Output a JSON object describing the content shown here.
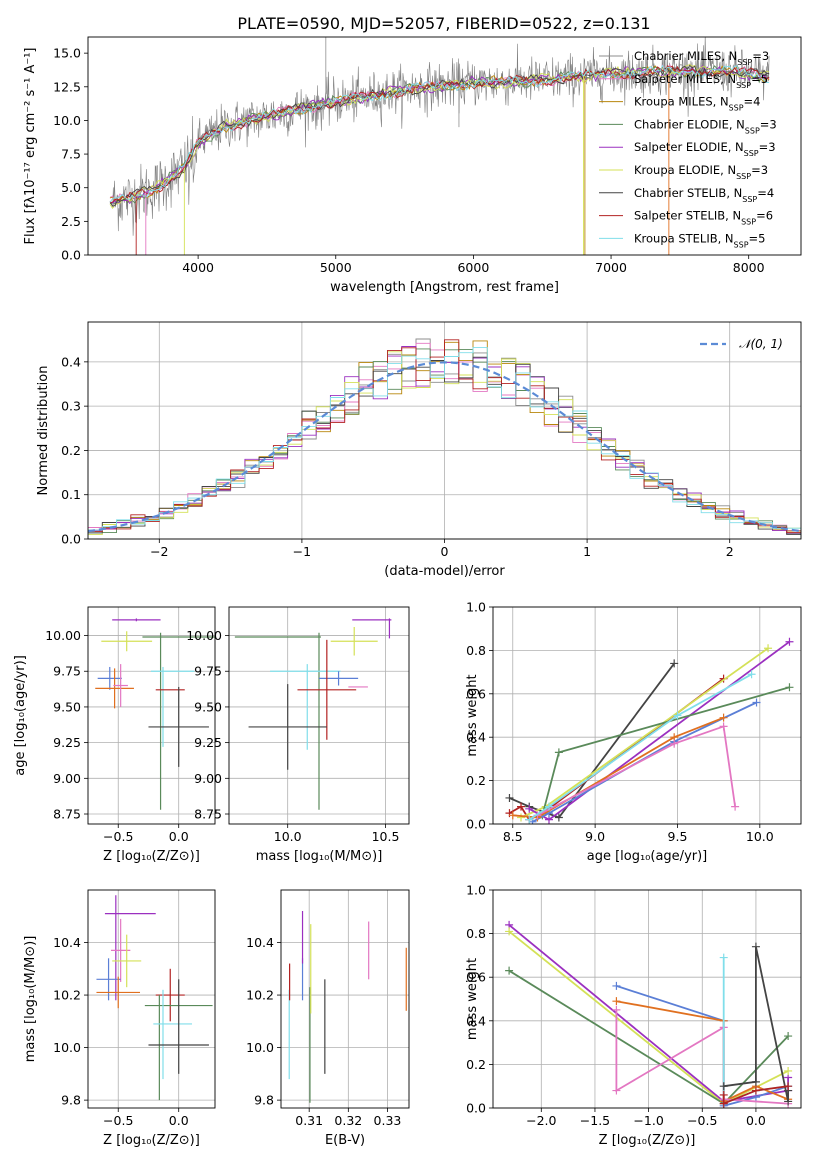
{
  "figure_title": "PLATE=0590, MJD=52057, FIBERID=0522, z=0.131",
  "colors": {
    "Chabrier MILES": "#8c8c8c",
    "Salpeter MILES": "#e377c2",
    "Kroupa MILES": "#b8860b",
    "Chabrier ELODIE": "#5a8a5a",
    "Salpeter ELODIE": "#9b30c0",
    "Kroupa ELODIE": "#d4e157",
    "Chabrier STELIB": "#444444",
    "Salpeter STELIB": "#b22222",
    "Kroupa STELIB": "#80deea",
    "extra_blue": "#5b7fd6",
    "extra_orange": "#e07020",
    "normal_fit": "#5b8bd6"
  },
  "chart_data": [
    {
      "id": "spectrum",
      "type": "line",
      "title": "PLATE=0590, MJD=52057, FIBERID=0522, z=0.131",
      "xlabel": "wavelength [Angstrom, rest frame]",
      "ylabel": "Flux [fλ10⁻¹⁷ erg cm⁻² s⁻¹ A⁻¹]",
      "xlim": [
        3200,
        8380
      ],
      "ylim": [
        0,
        16.2
      ],
      "xticks": [
        "4000",
        "5000",
        "6000",
        "7000",
        "8000"
      ],
      "yticks": [
        "0.0",
        "2.5",
        "5.0",
        "7.5",
        "10.0",
        "12.5",
        "15.0"
      ],
      "legend_position": "right",
      "legend": [
        {
          "name": "Chabrier MILES",
          "nssp": "3"
        },
        {
          "name": "Salpeter MILES",
          "nssp": "5"
        },
        {
          "name": "Kroupa MILES",
          "nssp": "4"
        },
        {
          "name": "Chabrier ELODIE",
          "nssp": "3"
        },
        {
          "name": "Salpeter ELODIE",
          "nssp": "3"
        },
        {
          "name": "Kroupa ELODIE",
          "nssp": "3"
        },
        {
          "name": "Chabrier STELIB",
          "nssp": "4"
        },
        {
          "name": "Salpeter STELIB",
          "nssp": "6"
        },
        {
          "name": "Kroupa STELIB",
          "nssp": "5"
        }
      ],
      "continuum": {
        "x": [
          3350,
          3500,
          3700,
          3900,
          4000,
          4200,
          4500,
          4800,
          5000,
          5200,
          5500,
          5800,
          6000,
          6300,
          6500,
          6800,
          7000,
          7300,
          7600,
          7900,
          8150
        ],
        "y": [
          3.9,
          4.2,
          5.0,
          6.5,
          8.3,
          9.6,
          10.3,
          11.0,
          11.4,
          11.7,
          12.3,
          12.6,
          12.8,
          12.9,
          13.0,
          13.3,
          13.5,
          13.6,
          13.7,
          13.6,
          13.2
        ]
      }
    },
    {
      "id": "residuals",
      "type": "bar",
      "xlabel": "(data-model)/error",
      "ylabel": "Normed distribution",
      "xlim": [
        -2.5,
        2.5
      ],
      "ylim": [
        0,
        0.49
      ],
      "xticks": [
        "−2",
        "−1",
        "0",
        "1",
        "2"
      ],
      "yticks": [
        "0.0",
        "0.1",
        "0.2",
        "0.3",
        "0.4"
      ],
      "legend": "𝒩(0, 1)",
      "legend_position": "top-right",
      "bins": 50
    },
    {
      "id": "age_vs_Z",
      "type": "scatter",
      "xlabel": "Z [log₁₀(Z/Z⊙)]",
      "ylabel": "age  [log₁₀(age/yr)]",
      "xlim": [
        -0.75,
        0.3
      ],
      "ylim": [
        8.68,
        10.2
      ],
      "xticks": [
        "−0.5",
        "0.0"
      ],
      "yticks": [
        "8.75",
        "9.00",
        "9.25",
        "9.50",
        "9.75",
        "10.00"
      ],
      "points": [
        {
          "model": "Salpeter ELODIE",
          "x": -0.35,
          "xerr": 0.2,
          "y": 10.11,
          "yerr": 0.01
        },
        {
          "model": "Kroupa ELODIE",
          "x": -0.43,
          "xerr": 0.21,
          "y": 9.96,
          "yerr": 0.07
        },
        {
          "model": "Chabrier ELODIE",
          "x": 0.0,
          "xerr": 0.3,
          "y": 9.99,
          "yerr": 0.0
        },
        {
          "model": "Chabrier ELODIE",
          "x": -0.15,
          "xerr": 0.0,
          "y": 9.4,
          "yerr": 0.62
        },
        {
          "model": "Kroupa STELIB",
          "x": -0.05,
          "xerr": 0.18,
          "y": 9.75,
          "yerr": 0.0
        },
        {
          "model": "Kroupa STELIB",
          "x": -0.13,
          "xerr": 0.0,
          "y": 9.5,
          "yerr": 0.28
        },
        {
          "model": "extra_blue",
          "x": -0.57,
          "xerr": 0.1,
          "y": 9.7,
          "yerr": 0.08
        },
        {
          "model": "extra_orange",
          "x": -0.53,
          "xerr": 0.16,
          "y": 9.63,
          "yerr": 0.14
        },
        {
          "model": "Salpeter MILES",
          "x": -0.48,
          "xerr": 0.06,
          "y": 9.65,
          "yerr": 0.15
        },
        {
          "model": "Salpeter STELIB",
          "x": -0.07,
          "xerr": 0.12,
          "y": 9.62,
          "yerr": 0.0
        },
        {
          "model": "Chabrier STELIB",
          "x": 0.0,
          "xerr": 0.25,
          "y": 9.36,
          "yerr": 0.28
        }
      ]
    },
    {
      "id": "age_vs_mass",
      "type": "scatter",
      "xlabel": "mass [log₁₀(M/M⊙)]",
      "ylabel": "",
      "xlim": [
        9.7,
        10.62
      ],
      "ylim": [
        8.68,
        10.2
      ],
      "xticks": [
        "10.0",
        "10.5"
      ],
      "yticks": [
        "8.75",
        "9.00",
        "9.25",
        "9.50",
        "9.75",
        "10.00"
      ],
      "points": [
        {
          "model": "Salpeter ELODIE",
          "x": 10.52,
          "xerr": 0.0,
          "y": 10.05,
          "yerr": 0.07
        },
        {
          "model": "Salpeter ELODIE",
          "x": 10.43,
          "xerr": 0.1,
          "y": 10.11,
          "yerr": 0.0
        },
        {
          "model": "Kroupa ELODIE",
          "x": 10.34,
          "xerr": 0.12,
          "y": 9.96,
          "yerr": 0.1
        },
        {
          "model": "Chabrier ELODIE",
          "x": 9.95,
          "xerr": 0.22,
          "y": 9.99,
          "yerr": 0.0
        },
        {
          "model": "Chabrier ELODIE",
          "x": 10.16,
          "xerr": 0.0,
          "y": 9.4,
          "yerr": 0.62
        },
        {
          "model": "Kroupa STELIB",
          "x": 10.09,
          "xerr": 0.18,
          "y": 9.75,
          "yerr": 0.0
        },
        {
          "model": "Kroupa STELIB",
          "x": 10.1,
          "xerr": 0.0,
          "y": 9.5,
          "yerr": 0.3
        },
        {
          "model": "extra_blue",
          "x": 10.26,
          "xerr": 0.1,
          "y": 9.7,
          "yerr": 0.05
        },
        {
          "model": "Salpeter MILES",
          "x": 10.36,
          "xerr": 0.05,
          "y": 9.64,
          "yerr": 0.0
        },
        {
          "model": "Salpeter STELIB",
          "x": 10.2,
          "xerr": 0.15,
          "y": 9.62,
          "yerr": 0.35
        },
        {
          "model": "Chabrier STELIB",
          "x": 10.0,
          "xerr": 0.2,
          "y": 9.36,
          "yerr": 0.3
        }
      ]
    },
    {
      "id": "weight_vs_age",
      "type": "line",
      "xlabel": "age  [log₁₀(age/yr)]",
      "ylabel": "mass weight",
      "xlim": [
        8.38,
        10.25
      ],
      "ylim": [
        0,
        1.0
      ],
      "xticks": [
        "8.5",
        "9.0",
        "9.5",
        "10.0"
      ],
      "yticks": [
        "0.0",
        "0.2",
        "0.4",
        "0.6",
        "0.8",
        "1.0"
      ],
      "series": [
        {
          "model": "Chabrier STELIB",
          "x": [
            8.48,
            8.6,
            8.78,
            9.48
          ],
          "y": [
            0.12,
            0.08,
            0.03,
            0.74
          ]
        },
        {
          "model": "Salpeter STELIB",
          "x": [
            8.48,
            8.55,
            8.6,
            8.7,
            9.78
          ],
          "y": [
            0.05,
            0.08,
            0.02,
            0.06,
            0.67
          ]
        },
        {
          "model": "Kroupa ELODIE",
          "x": [
            8.55,
            8.7,
            10.05
          ],
          "y": [
            0.03,
            0.08,
            0.81
          ]
        },
        {
          "model": "Salpeter ELODIE",
          "x": [
            8.6,
            8.72,
            10.18
          ],
          "y": [
            0.07,
            0.02,
            0.84
          ]
        },
        {
          "model": "Chabrier ELODIE",
          "x": [
            8.68,
            8.78,
            10.18
          ],
          "y": [
            0.04,
            0.33,
            0.63
          ]
        },
        {
          "model": "extra_blue",
          "x": [
            8.62,
            8.72,
            9.48,
            9.98
          ],
          "y": [
            0.01,
            0.05,
            0.38,
            0.56
          ]
        },
        {
          "model": "extra_orange",
          "x": [
            8.5,
            8.65,
            9.48,
            9.78
          ],
          "y": [
            0.04,
            0.03,
            0.4,
            0.49
          ]
        },
        {
          "model": "Salpeter MILES",
          "x": [
            8.65,
            9.48,
            9.78,
            9.85
          ],
          "y": [
            0.04,
            0.37,
            0.45,
            0.08
          ]
        },
        {
          "model": "Kroupa STELIB",
          "x": [
            8.6,
            8.72,
            9.5,
            9.95
          ],
          "y": [
            0.02,
            0.08,
            0.5,
            0.69
          ]
        }
      ]
    },
    {
      "id": "mass_vs_Z",
      "type": "scatter",
      "xlabel": "Z [log₁₀(Z/Z⊙)]",
      "ylabel": "mass [log₁₀(M/M⊙)]",
      "xlim": [
        -0.75,
        0.3
      ],
      "ylim": [
        9.77,
        10.6
      ],
      "xticks": [
        "−0.5",
        "0.0"
      ],
      "yticks": [
        "9.8",
        "10.0",
        "10.2",
        "10.4"
      ],
      "points": [
        {
          "model": "Salpeter ELODIE",
          "x": -0.4,
          "xerr": 0.21,
          "y": 10.51,
          "yerr": 0.0
        },
        {
          "model": "Salpeter ELODIE",
          "x": -0.52,
          "xerr": 0.0,
          "y": 10.38,
          "yerr": 0.2
        },
        {
          "model": "Salpeter MILES",
          "x": -0.48,
          "xerr": 0.08,
          "y": 10.37,
          "yerr": 0.12
        },
        {
          "model": "Kroupa ELODIE",
          "x": -0.43,
          "xerr": 0.12,
          "y": 10.33,
          "yerr": 0.1
        },
        {
          "model": "extra_blue",
          "x": -0.58,
          "xerr": 0.1,
          "y": 10.26,
          "yerr": 0.08
        },
        {
          "model": "extra_orange",
          "x": -0.5,
          "xerr": 0.18,
          "y": 10.21,
          "yerr": 0.06
        },
        {
          "model": "Salpeter STELIB",
          "x": -0.07,
          "xerr": 0.12,
          "y": 10.2,
          "yerr": 0.1
        },
        {
          "model": "Chabrier ELODIE",
          "x": -0.0,
          "xerr": 0.28,
          "y": 10.16,
          "yerr": 0.0
        },
        {
          "model": "Chabrier ELODIE",
          "x": -0.16,
          "xerr": 0.0,
          "y": 10.0,
          "yerr": 0.2
        },
        {
          "model": "Kroupa STELIB",
          "x": -0.05,
          "xerr": 0.16,
          "y": 10.09,
          "yerr": 0.0
        },
        {
          "model": "Kroupa STELIB",
          "x": -0.13,
          "xerr": 0.0,
          "y": 10.05,
          "yerr": 0.17
        },
        {
          "model": "Chabrier STELIB",
          "x": 0.0,
          "xerr": 0.25,
          "y": 10.01,
          "yerr": 0.0
        },
        {
          "model": "Chabrier STELIB",
          "x": -0.0,
          "xerr": 0.0,
          "y": 10.08,
          "yerr": 0.18
        }
      ]
    },
    {
      "id": "mass_vs_ebv",
      "type": "scatter",
      "xlabel": "E(B-V)",
      "ylabel": "",
      "xlim": [
        0.3028,
        0.3355
      ],
      "ylim": [
        9.77,
        10.6
      ],
      "xticks": [
        "0.31",
        "0.32",
        "0.33"
      ],
      "yticks": [
        "9.8",
        "10.0",
        "10.2",
        "10.4"
      ],
      "points": [
        {
          "model": "Kroupa STELIB",
          "x": 0.3049,
          "y": 10.05,
          "yerr": 0.17
        },
        {
          "model": "Salpeter STELIB",
          "x": 0.305,
          "y": 10.25,
          "yerr": 0.07
        },
        {
          "model": "extra_blue",
          "x": 0.3083,
          "y": 10.26,
          "yerr": 0.08
        },
        {
          "model": "Salpeter ELODIE",
          "x": 0.3083,
          "y": 10.42,
          "yerr": 0.1
        },
        {
          "model": "Chabrier ELODIE",
          "x": 0.3102,
          "y": 10.01,
          "yerr": 0.22
        },
        {
          "model": "Kroupa ELODIE",
          "x": 0.3104,
          "y": 10.3,
          "yerr": 0.17
        },
        {
          "model": "Chabrier STELIB",
          "x": 0.314,
          "y": 10.08,
          "yerr": 0.18
        },
        {
          "model": "Salpeter MILES",
          "x": 0.3252,
          "y": 10.37,
          "yerr": 0.11
        },
        {
          "model": "extra_orange",
          "x": 0.3348,
          "y": 10.26,
          "yerr": 0.12
        }
      ]
    },
    {
      "id": "weight_vs_Z",
      "type": "line",
      "xlabel": "Z [log₁₀(Z/Z⊙)]",
      "ylabel": "mass weight",
      "xlim": [
        -2.45,
        0.42
      ],
      "ylim": [
        0,
        1.0
      ],
      "xticks": [
        "−2.0",
        "−1.5",
        "−1.0",
        "−0.5",
        "0.0"
      ],
      "yticks": [
        "0.0",
        "0.2",
        "0.4",
        "0.6",
        "0.8",
        "1.0"
      ],
      "series": [
        {
          "model": "Salpeter ELODIE",
          "x": [
            -2.3,
            -0.3,
            0.3,
            0.3
          ],
          "y": [
            0.84,
            0.03,
            0.08,
            0.14
          ]
        },
        {
          "model": "Kroupa ELODIE",
          "x": [
            -2.3,
            -0.3,
            0.3
          ],
          "y": [
            0.81,
            0.02,
            0.17
          ]
        },
        {
          "model": "Chabrier ELODIE",
          "x": [
            -2.3,
            -0.3,
            0.3
          ],
          "y": [
            0.63,
            0.02,
            0.33
          ]
        },
        {
          "model": "extra_blue",
          "x": [
            -1.3,
            -0.3,
            -0.3,
            0.0,
            0.3
          ],
          "y": [
            0.56,
            0.4,
            0.01,
            0.05,
            0.1
          ]
        },
        {
          "model": "extra_orange",
          "x": [
            -1.3,
            -0.3,
            -0.3,
            0.0,
            0.3
          ],
          "y": [
            0.49,
            0.4,
            0.03,
            0.1,
            0.04
          ]
        },
        {
          "model": "Salpeter MILES",
          "x": [
            -1.3,
            -1.3,
            -0.3,
            -0.3,
            0.3
          ],
          "y": [
            0.45,
            0.08,
            0.37,
            0.04,
            0.02
          ]
        },
        {
          "model": "Kroupa STELIB",
          "x": [
            -0.3,
            -0.3,
            0.0,
            0.3
          ],
          "y": [
            0.69,
            0.02,
            0.08,
            0.1
          ]
        },
        {
          "model": "Chabrier STELIB",
          "x": [
            -0.3,
            0.0,
            0.0,
            0.3,
            0.3
          ],
          "y": [
            0.1,
            0.12,
            0.74,
            0.03,
            0.08
          ]
        },
        {
          "model": "Salpeter STELIB",
          "x": [
            -0.3,
            -0.3,
            0.0,
            0.3
          ],
          "y": [
            0.06,
            0.02,
            0.08,
            0.1
          ]
        }
      ]
    }
  ]
}
